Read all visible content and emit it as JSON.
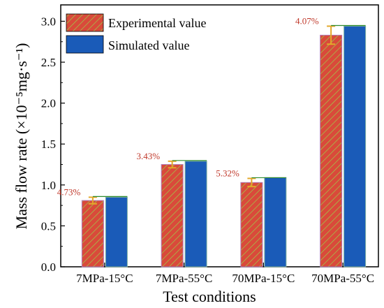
{
  "chart_data": {
    "type": "bar",
    "categories": [
      "7MPa-15°C",
      "7MPa-55°C",
      "70MPa-15°C",
      "70MPa-55°C"
    ],
    "series": [
      {
        "name": "Experimental value",
        "values": [
          0.81,
          1.25,
          1.03,
          2.83
        ],
        "error": [
          0.04,
          0.04,
          0.05,
          0.11
        ],
        "color": "#d94a3a",
        "hatch_color": "#9bd24a",
        "style": "hatched"
      },
      {
        "name": "Simulated value",
        "values": [
          0.85,
          1.29,
          1.09,
          2.94
        ],
        "color": "#1a5bb8",
        "style": "solid"
      }
    ],
    "error_color": "#e3a82a",
    "annotations": [
      "4.73%",
      "3.43%",
      "5.32%",
      "4.07%"
    ],
    "annotation_color": "#c0392b",
    "xlabel": "Test conditions",
    "ylabel": "Mass flow rate (×10⁻⁵mg·s⁻¹)",
    "ylim": [
      0,
      3.2
    ],
    "yticks": [
      "0.0",
      "0.5",
      "1.0",
      "1.5",
      "2.0",
      "2.5",
      "3.0"
    ],
    "legend_position": "top-left",
    "grid": false
  }
}
